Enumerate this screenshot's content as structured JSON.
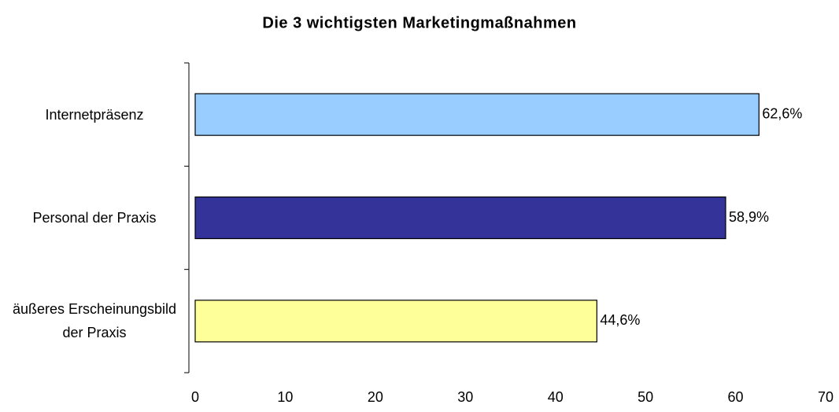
{
  "chart_data": {
    "type": "hbar",
    "title": "Die 3 wichtigsten Marketingmaßnahmen",
    "categories": [
      "Internetpräsenz",
      "Personal der Praxis",
      "äußeres Erscheinungsbild der Praxis"
    ],
    "values": [
      62.6,
      58.9,
      44.6
    ],
    "value_labels": [
      "62,6%",
      "58,9%",
      "44,6%"
    ],
    "colors": [
      "#99ccff",
      "#333399",
      "#ffff99"
    ],
    "xlim": [
      0,
      70
    ],
    "xticks": [
      0,
      10,
      20,
      30,
      40,
      50,
      60,
      70
    ],
    "grid": false
  }
}
